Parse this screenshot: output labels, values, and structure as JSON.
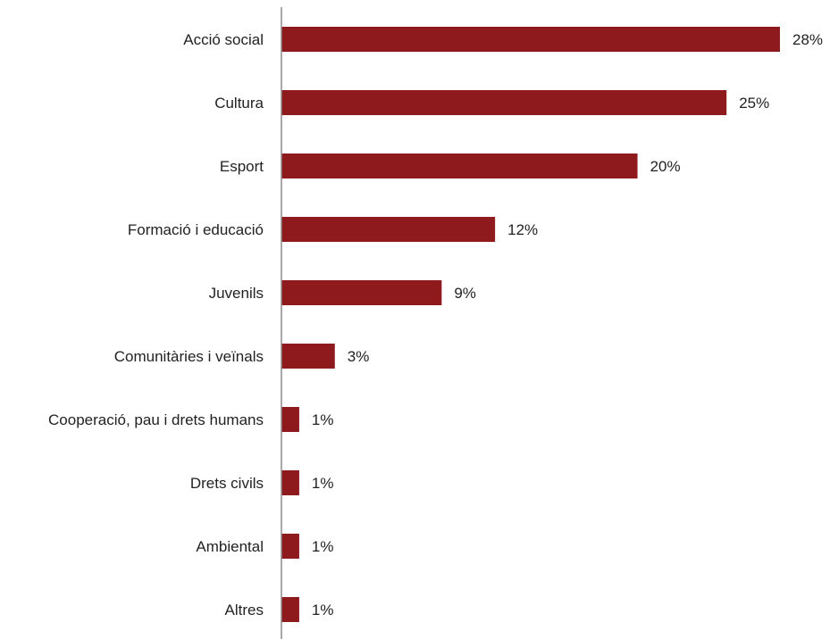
{
  "chart_data": {
    "type": "bar",
    "orientation": "horizontal",
    "categories": [
      "Acció social",
      "Cultura",
      "Esport",
      "Formació i educació",
      "Juvenils",
      "Comunitàries i veïnals",
      "Cooperació, pau i drets humans",
      "Drets civils",
      "Ambiental",
      "Altres"
    ],
    "values": [
      28,
      25,
      20,
      12,
      9,
      3,
      1,
      1,
      1,
      1
    ],
    "value_labels": [
      "28%",
      "25%",
      "20%",
      "12%",
      "9%",
      "3%",
      "1%",
      "1%",
      "1%",
      "1%"
    ],
    "unit": "%",
    "xlim": [
      0,
      28
    ],
    "grid": false,
    "legend": "none",
    "bar_color": "#8f1a1e",
    "axis_color": "#8c8c8c"
  }
}
